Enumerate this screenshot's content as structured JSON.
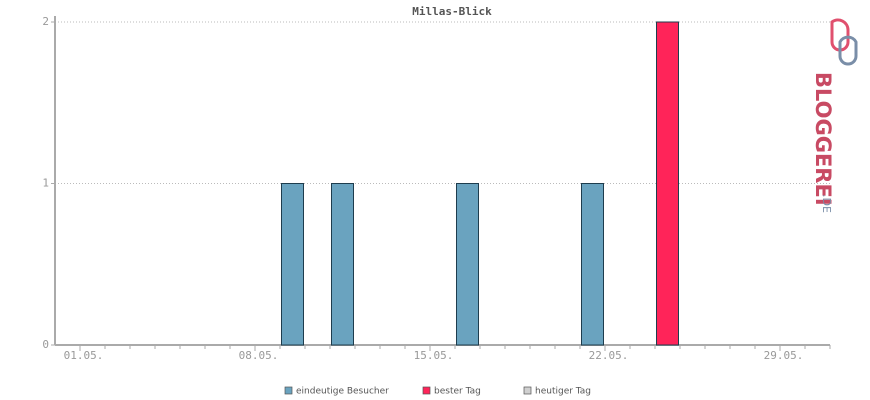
{
  "chart_data": {
    "type": "bar",
    "title": "Millas-Blick",
    "categories": [
      "01.05.",
      null,
      null,
      null,
      null,
      null,
      null,
      "08.05.",
      null,
      null,
      null,
      null,
      null,
      null,
      "15.05.",
      null,
      null,
      null,
      null,
      null,
      null,
      "22.05.",
      null,
      null,
      null,
      null,
      null,
      null,
      "29.05.",
      null,
      null
    ],
    "series": [
      {
        "name": "eindeutige Besucher",
        "color": "#6aa3bf",
        "values": [
          0,
          0,
          0,
          0,
          0,
          0,
          0,
          0,
          0,
          1,
          0,
          1,
          0,
          0,
          0,
          0,
          1,
          0,
          0,
          0,
          0,
          1,
          0,
          0,
          null,
          0,
          0,
          0,
          0,
          0,
          0
        ]
      },
      {
        "name": "bester Tag",
        "color": "#ff2459",
        "values": [
          null,
          null,
          null,
          null,
          null,
          null,
          null,
          null,
          null,
          null,
          null,
          null,
          null,
          null,
          null,
          null,
          null,
          null,
          null,
          null,
          null,
          null,
          null,
          null,
          2,
          null,
          null,
          null,
          null,
          null,
          null
        ]
      },
      {
        "name": "heutiger Tag",
        "color": "#d0d0d0",
        "values": [
          null,
          null,
          null,
          null,
          null,
          null,
          null,
          null,
          null,
          null,
          null,
          null,
          null,
          null,
          null,
          null,
          null,
          null,
          null,
          null,
          null,
          null,
          null,
          null,
          null,
          null,
          null,
          null,
          null,
          null,
          null
        ]
      }
    ],
    "ylim": [
      0,
      2
    ],
    "yticks": [
      0,
      1,
      2
    ],
    "grid": true
  },
  "logo": {
    "name": "BLOGGEREI",
    "tld": ".DE"
  }
}
